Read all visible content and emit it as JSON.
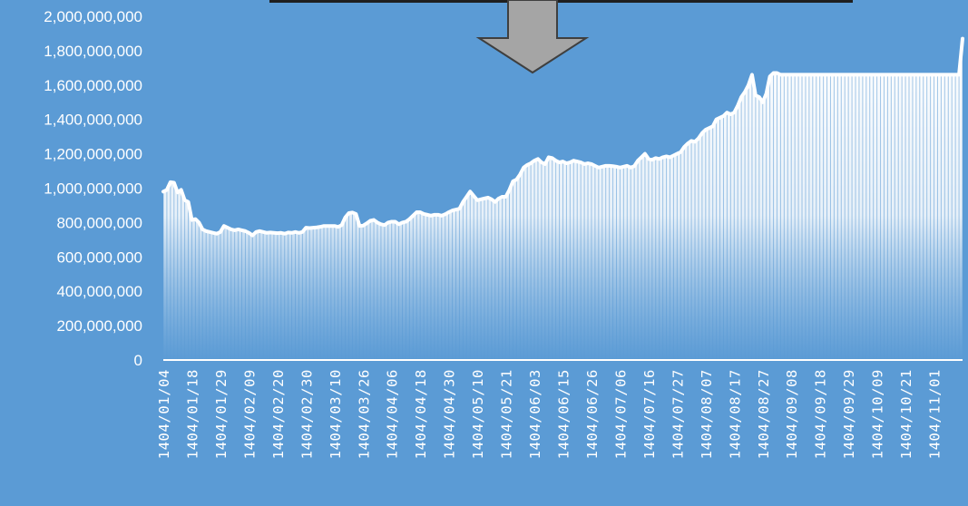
{
  "chart_data": {
    "type": "area",
    "title": "",
    "xlabel": "",
    "ylabel": "",
    "ylim": [
      0,
      2000000000
    ],
    "y_ticks": [
      0,
      200000000,
      400000000,
      600000000,
      800000000,
      1000000000,
      1200000000,
      1400000000,
      1600000000,
      1800000000,
      2000000000
    ],
    "y_tick_labels": [
      "0",
      "200,000,000",
      "400,000,000",
      "600,000,000",
      "800,000,000",
      "1,000,000,000",
      "1,200,000,000",
      "1,400,000,000",
      "1,600,000,000",
      "1,800,000,000",
      "2,000,000,000"
    ],
    "x_tick_labels": [
      "1404/01/04",
      "1404/01/18",
      "1404/01/29",
      "1404/02/09",
      "1404/02/20",
      "1404/02/30",
      "1404/03/10",
      "1404/03/26",
      "1404/04/06",
      "1404/04/18",
      "1404/04/30",
      "1404/05/10",
      "1404/05/21",
      "1404/06/03",
      "1404/06/15",
      "1404/06/26",
      "1404/07/06",
      "1404/07/16",
      "1404/07/27",
      "1404/08/07",
      "1404/08/17",
      "1404/08/27",
      "1404/09/08",
      "1404/09/18",
      "1404/09/29",
      "1404/10/09",
      "1404/10/21",
      "1404/11/01"
    ],
    "x_tick_values": [
      0,
      8,
      16,
      24,
      32,
      40,
      48,
      56,
      64,
      72,
      80,
      88,
      96,
      104,
      112,
      120,
      128,
      136,
      144,
      152,
      160,
      168,
      176,
      184,
      192,
      200,
      208,
      216
    ],
    "n_points": 225,
    "values": [
      980000000,
      990000000,
      1035000000,
      1032000000,
      975000000,
      990000000,
      930000000,
      920000000,
      815000000,
      820000000,
      800000000,
      760000000,
      750000000,
      745000000,
      740000000,
      735000000,
      745000000,
      780000000,
      770000000,
      760000000,
      755000000,
      760000000,
      755000000,
      750000000,
      740000000,
      725000000,
      745000000,
      750000000,
      745000000,
      740000000,
      742000000,
      740000000,
      738000000,
      740000000,
      735000000,
      742000000,
      740000000,
      745000000,
      740000000,
      745000000,
      770000000,
      768000000,
      770000000,
      772000000,
      775000000,
      780000000,
      780000000,
      780000000,
      780000000,
      775000000,
      785000000,
      830000000,
      855000000,
      858000000,
      850000000,
      780000000,
      782000000,
      795000000,
      810000000,
      815000000,
      800000000,
      790000000,
      785000000,
      800000000,
      805000000,
      805000000,
      790000000,
      800000000,
      805000000,
      820000000,
      840000000,
      860000000,
      860000000,
      850000000,
      845000000,
      840000000,
      845000000,
      845000000,
      840000000,
      848000000,
      860000000,
      870000000,
      875000000,
      880000000,
      920000000,
      950000000,
      980000000,
      955000000,
      930000000,
      935000000,
      940000000,
      945000000,
      935000000,
      920000000,
      940000000,
      950000000,
      950000000,
      990000000,
      1040000000,
      1050000000,
      1080000000,
      1120000000,
      1135000000,
      1145000000,
      1160000000,
      1170000000,
      1150000000,
      1140000000,
      1180000000,
      1175000000,
      1160000000,
      1150000000,
      1155000000,
      1145000000,
      1150000000,
      1160000000,
      1155000000,
      1150000000,
      1140000000,
      1145000000,
      1140000000,
      1130000000,
      1120000000,
      1125000000,
      1130000000,
      1130000000,
      1128000000,
      1125000000,
      1120000000,
      1125000000,
      1130000000,
      1120000000,
      1128000000,
      1160000000,
      1180000000,
      1200000000,
      1170000000,
      1165000000,
      1175000000,
      1170000000,
      1180000000,
      1185000000,
      1180000000,
      1190000000,
      1200000000,
      1210000000,
      1240000000,
      1260000000,
      1275000000,
      1270000000,
      1290000000,
      1320000000,
      1340000000,
      1350000000,
      1360000000,
      1400000000,
      1410000000,
      1420000000,
      1440000000,
      1430000000,
      1440000000,
      1480000000,
      1530000000,
      1560000000,
      1600000000,
      1660000000,
      1540000000,
      1530000000,
      1500000000,
      1550000000,
      1650000000,
      1670000000,
      1670000000,
      1660000000,
      1660000000,
      1660000000,
      1660000000,
      1660000000,
      1660000000,
      1660000000,
      1660000000,
      1660000000,
      1660000000,
      1660000000,
      1660000000,
      1660000000,
      1660000000,
      1660000000,
      1660000000,
      1660000000,
      1660000000,
      1660000000,
      1660000000,
      1660000000,
      1660000000,
      1660000000,
      1660000000,
      1660000000,
      1660000000,
      1660000000,
      1660000000,
      1660000000,
      1660000000,
      1660000000,
      1660000000,
      1660000000,
      1660000000,
      1660000000,
      1660000000,
      1660000000,
      1660000000,
      1660000000,
      1660000000,
      1660000000,
      1660000000,
      1660000000,
      1660000000,
      1660000000,
      1660000000,
      1660000000,
      1660000000,
      1660000000,
      1660000000,
      1660000000,
      1870000000
    ],
    "grid": false,
    "legend": "none",
    "colors": {
      "background": "#5b9bd5",
      "line": "#ffffff",
      "fill_top": "#ffffff",
      "fill_bottom": "#5b9bd5",
      "arrow_fill": "#a5a5a5",
      "arrow_stroke": "#3f3f3f",
      "box_stroke": "#1f1f1f",
      "text": "#ffffff"
    }
  },
  "icons": {
    "arrow": "down-arrow-icon"
  }
}
